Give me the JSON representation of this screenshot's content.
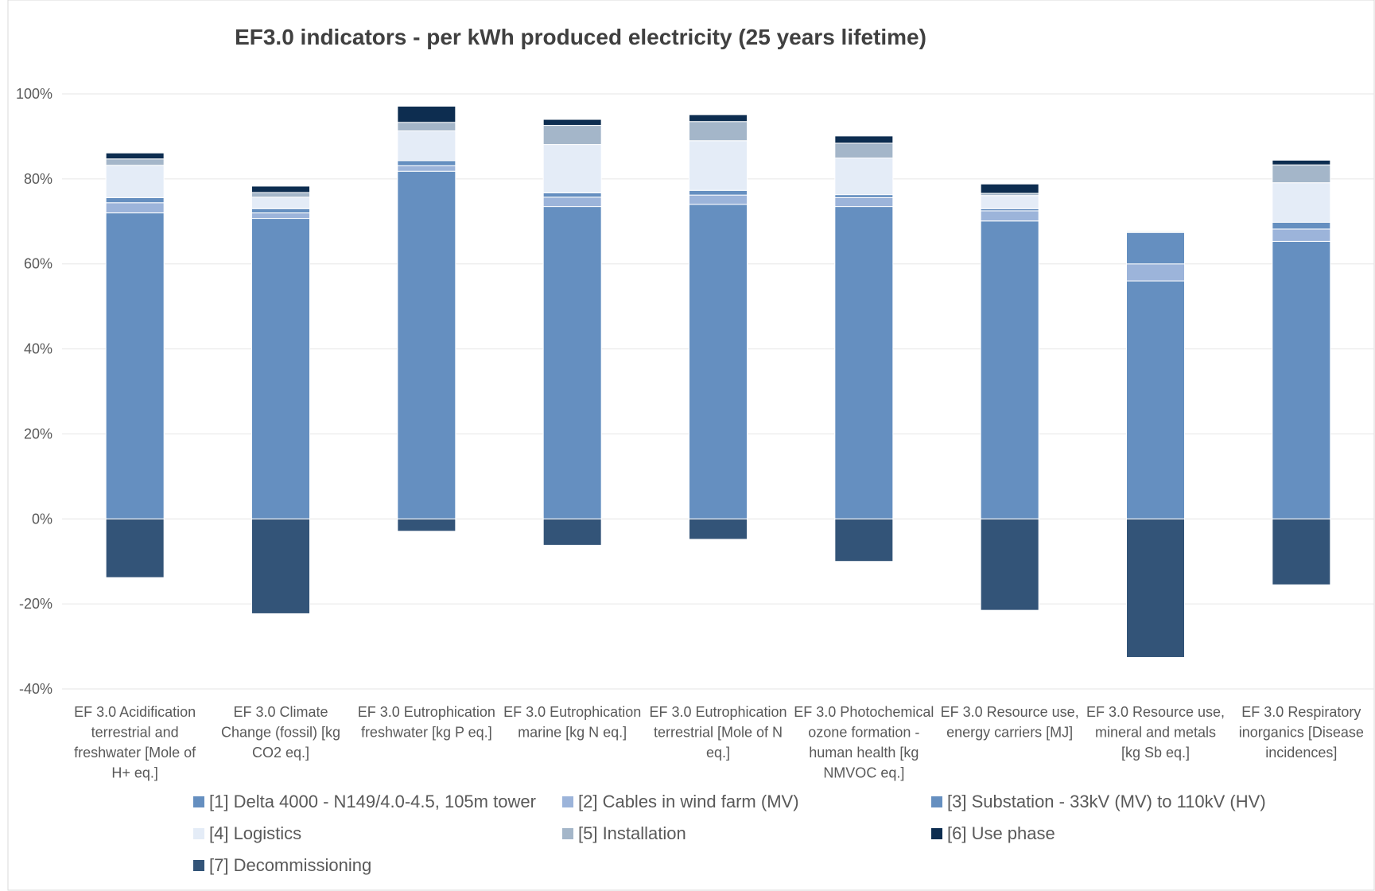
{
  "chart_data": {
    "type": "bar",
    "stacked": true,
    "title": "EF3.0 indicators - per kWh produced electricity (25 years lifetime)",
    "xlabel": "",
    "ylabel": "",
    "ylim": [
      -40,
      100
    ],
    "yticks": [
      -40,
      -20,
      0,
      20,
      40,
      60,
      80,
      100
    ],
    "ytick_labels": [
      "-40%",
      "-20%",
      "0%",
      "20%",
      "40%",
      "60%",
      "80%",
      "100%"
    ],
    "grid": true,
    "legend_position": "bottom",
    "categories": [
      [
        "EF 3.0 Acidification",
        "terrestrial and",
        "freshwater [Mole of",
        "H+ eq.]"
      ],
      [
        "EF 3.0 Climate",
        "Change (fossil) [kg",
        "CO2 eq.]"
      ],
      [
        "EF 3.0 Eutrophication",
        "freshwater [kg P eq.]"
      ],
      [
        "EF 3.0 Eutrophication",
        "marine [kg N eq.]"
      ],
      [
        "EF 3.0 Eutrophication",
        "terrestrial [Mole of N",
        "eq.]"
      ],
      [
        "EF 3.0 Photochemical",
        "ozone formation -",
        "human health [kg",
        "NMVOC eq.]"
      ],
      [
        "EF 3.0 Resource use,",
        "energy carriers [MJ]"
      ],
      [
        "EF 3.0 Resource use,",
        "mineral and metals",
        "[kg Sb eq.]"
      ],
      [
        "EF 3.0 Respiratory",
        "inorganics [Disease",
        "incidences]"
      ]
    ],
    "series": [
      {
        "name": "[1] Delta 4000 - N149/4.0-4.5, 105m tower",
        "color": "#658fc0",
        "values": [
          72,
          70.7,
          81.8,
          73.5,
          74,
          73.5,
          70.1,
          56,
          65.3
        ]
      },
      {
        "name": "[2] Cables in wind farm (MV)",
        "color": "#9cb4da",
        "values": [
          2.4,
          1.3,
          1.3,
          2.2,
          2.2,
          2.1,
          2.4,
          4,
          2.9
        ]
      },
      {
        "name": "[3] Substation - 33kV (MV) to 110kV (HV)",
        "color": "#658fc0",
        "values": [
          1.2,
          1.0,
          1.2,
          1.0,
          1.1,
          0.7,
          0.5,
          7.4,
          1.6
        ]
      },
      {
        "name": "[4] Logistics",
        "color": "#e4ecf7",
        "values": [
          7.6,
          2.7,
          7.0,
          11.4,
          11.7,
          8.6,
          3.1,
          0.1,
          9.3
        ]
      },
      {
        "name": "[5] Installation",
        "color": "#a4b6c9",
        "values": [
          1.5,
          1.1,
          2.0,
          4.5,
          4.5,
          3.5,
          0.5,
          0.1,
          4.2
        ]
      },
      {
        "name": "[6] Use phase",
        "color": "#0d2d50",
        "values": [
          1.4,
          1.5,
          3.8,
          1.4,
          1.6,
          1.7,
          2.2,
          0.2,
          1.1
        ]
      },
      {
        "name": "[7] Decommissioning",
        "color": "#335478",
        "values": [
          -13.8,
          -22.3,
          -2.9,
          -6.2,
          -4.8,
          -10.0,
          -21.5,
          -32.6,
          -15.5
        ]
      }
    ]
  }
}
